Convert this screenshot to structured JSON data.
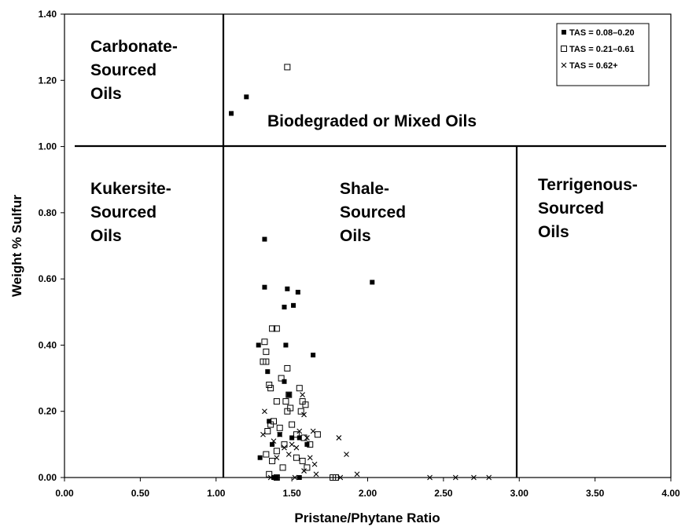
{
  "chart_data": {
    "type": "scatter",
    "x_label": "Pristane/Phytane Ratio",
    "y_label": "Weight % Sulfur",
    "xlim": [
      0,
      4
    ],
    "ylim": [
      0,
      1.4
    ],
    "xticks": [
      {
        "value": 0,
        "label": "0.00"
      },
      {
        "value": 0.5,
        "label": "0.50"
      },
      {
        "value": 1,
        "label": "1.00"
      },
      {
        "value": 1.5,
        "label": "1.50"
      },
      {
        "value": 2,
        "label": "2.00"
      },
      {
        "value": 2.5,
        "label": "2.50"
      },
      {
        "value": 3,
        "label": "3.00"
      },
      {
        "value": 3.5,
        "label": "3.50"
      },
      {
        "value": 4,
        "label": "4.00"
      }
    ],
    "yticks": [
      {
        "value": 0,
        "label": "0.00"
      },
      {
        "value": 0.2,
        "label": "0.20"
      },
      {
        "value": 0.4,
        "label": "0.40"
      },
      {
        "value": 0.6,
        "label": "0.60"
      },
      {
        "value": 0.8,
        "label": "0.80"
      },
      {
        "value": 1,
        "label": "1.00"
      },
      {
        "value": 1.2,
        "label": "1.20"
      },
      {
        "value": 1.4,
        "label": "1.40"
      }
    ],
    "grid": false,
    "legend": "upper right",
    "annotations": [
      {
        "lines": [
          "Carbonate-",
          "Sourced",
          "Oils"
        ]
      },
      {
        "lines": [
          "Biodegraded or Mixed Oils"
        ]
      },
      {
        "lines": [
          "Kukersite-",
          "Sourced",
          "Oils"
        ]
      },
      {
        "lines": [
          "Shale-",
          "Sourced",
          "Oils"
        ]
      },
      {
        "lines": [
          "Terrigenous-",
          "Sourced",
          "Oils"
        ]
      }
    ],
    "series": [
      {
        "name": "TAS = 0.08–0.20",
        "marker": "filled-square",
        "color": "#000000",
        "x": [
          1.1,
          1.2,
          1.32,
          1.32,
          1.47,
          1.54,
          1.51,
          1.45,
          2.03,
          1.28,
          1.46,
          1.64,
          1.34,
          1.45,
          1.48,
          1.29,
          1.35,
          1.37,
          1.55,
          1.6,
          1.5,
          1.42,
          1.38,
          1.4,
          1.55
        ],
        "values": [
          1.1,
          1.15,
          0.72,
          0.575,
          0.57,
          0.56,
          0.52,
          0.515,
          0.59,
          0.4,
          0.4,
          0.37,
          0.32,
          0.29,
          0.25,
          0.06,
          0.17,
          0.1,
          0.12,
          0.1,
          0.12,
          0.13,
          0.0,
          0.0,
          0.0
        ]
      },
      {
        "name": "TAS = 0.21–0.61",
        "marker": "open-square",
        "color": "#000000",
        "x": [
          1.47,
          1.32,
          1.37,
          1.4,
          1.33,
          1.33,
          1.31,
          1.43,
          1.35,
          1.36,
          1.47,
          1.55,
          1.57,
          1.4,
          1.46,
          1.49,
          1.56,
          1.59,
          1.47,
          1.38,
          1.36,
          1.34,
          1.42,
          1.5,
          1.53,
          1.58,
          1.62,
          1.67,
          1.45,
          1.4,
          1.33,
          1.37,
          1.44,
          1.53,
          1.57,
          1.6,
          1.35,
          1.77,
          1.79,
          1.4,
          1.48
        ],
        "values": [
          1.24,
          0.41,
          0.45,
          0.45,
          0.38,
          0.35,
          0.35,
          0.3,
          0.28,
          0.27,
          0.33,
          0.27,
          0.23,
          0.23,
          0.23,
          0.21,
          0.2,
          0.22,
          0.2,
          0.17,
          0.16,
          0.14,
          0.15,
          0.16,
          0.13,
          0.12,
          0.1,
          0.13,
          0.1,
          0.08,
          0.07,
          0.05,
          0.03,
          0.06,
          0.05,
          0.03,
          0.01,
          0.0,
          0.0,
          0.0,
          0.25
        ]
      },
      {
        "name": "TAS = 0.62+",
        "marker": "cross",
        "color": "#000000",
        "x": [
          1.32,
          1.31,
          1.38,
          1.42,
          1.45,
          1.48,
          1.5,
          1.55,
          1.57,
          1.58,
          1.6,
          1.62,
          1.64,
          1.65,
          1.66,
          1.52,
          1.58,
          1.81,
          1.86,
          1.82,
          1.93,
          2.41,
          2.58,
          2.7,
          2.8,
          1.36,
          1.4,
          1.53
        ],
        "values": [
          0.2,
          0.13,
          0.11,
          0.13,
          0.09,
          0.07,
          0.1,
          0.14,
          0.25,
          0.19,
          0.12,
          0.06,
          0.14,
          0.04,
          0.01,
          0.0,
          0.02,
          0.12,
          0.07,
          0.0,
          0.01,
          0.0,
          0.0,
          0.0,
          0.0,
          0.0,
          0.06,
          0.09
        ]
      }
    ]
  }
}
